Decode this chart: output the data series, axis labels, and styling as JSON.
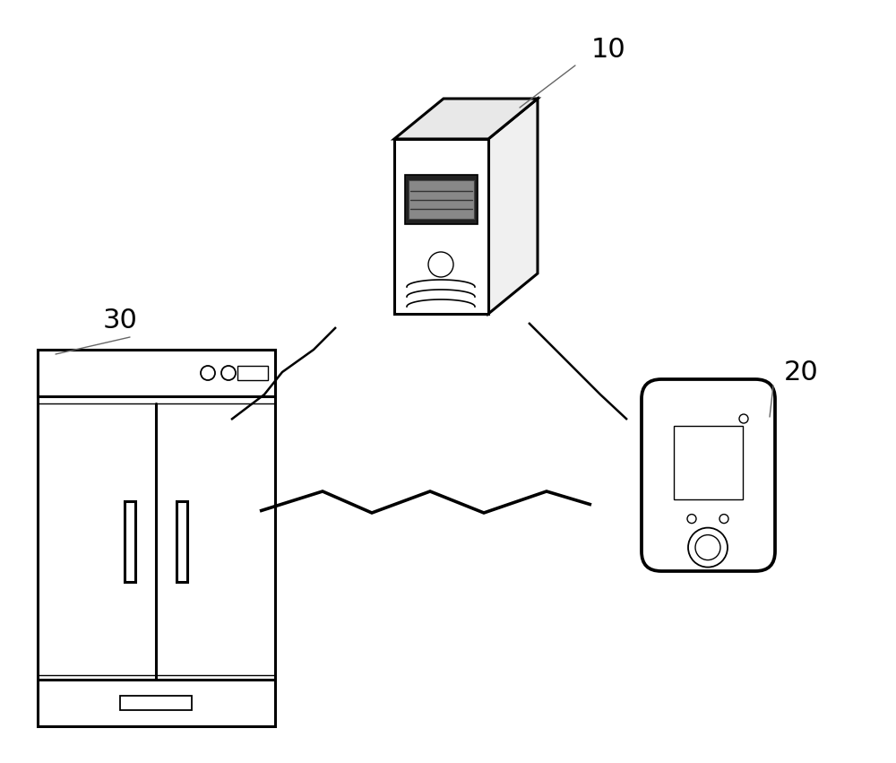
{
  "background_color": "#ffffff",
  "label_10": "10",
  "label_20": "20",
  "label_30": "30",
  "line_color": "#000000",
  "lw_thick": 2.2,
  "lw_thin": 1.0,
  "lw_bolt": 1.8
}
